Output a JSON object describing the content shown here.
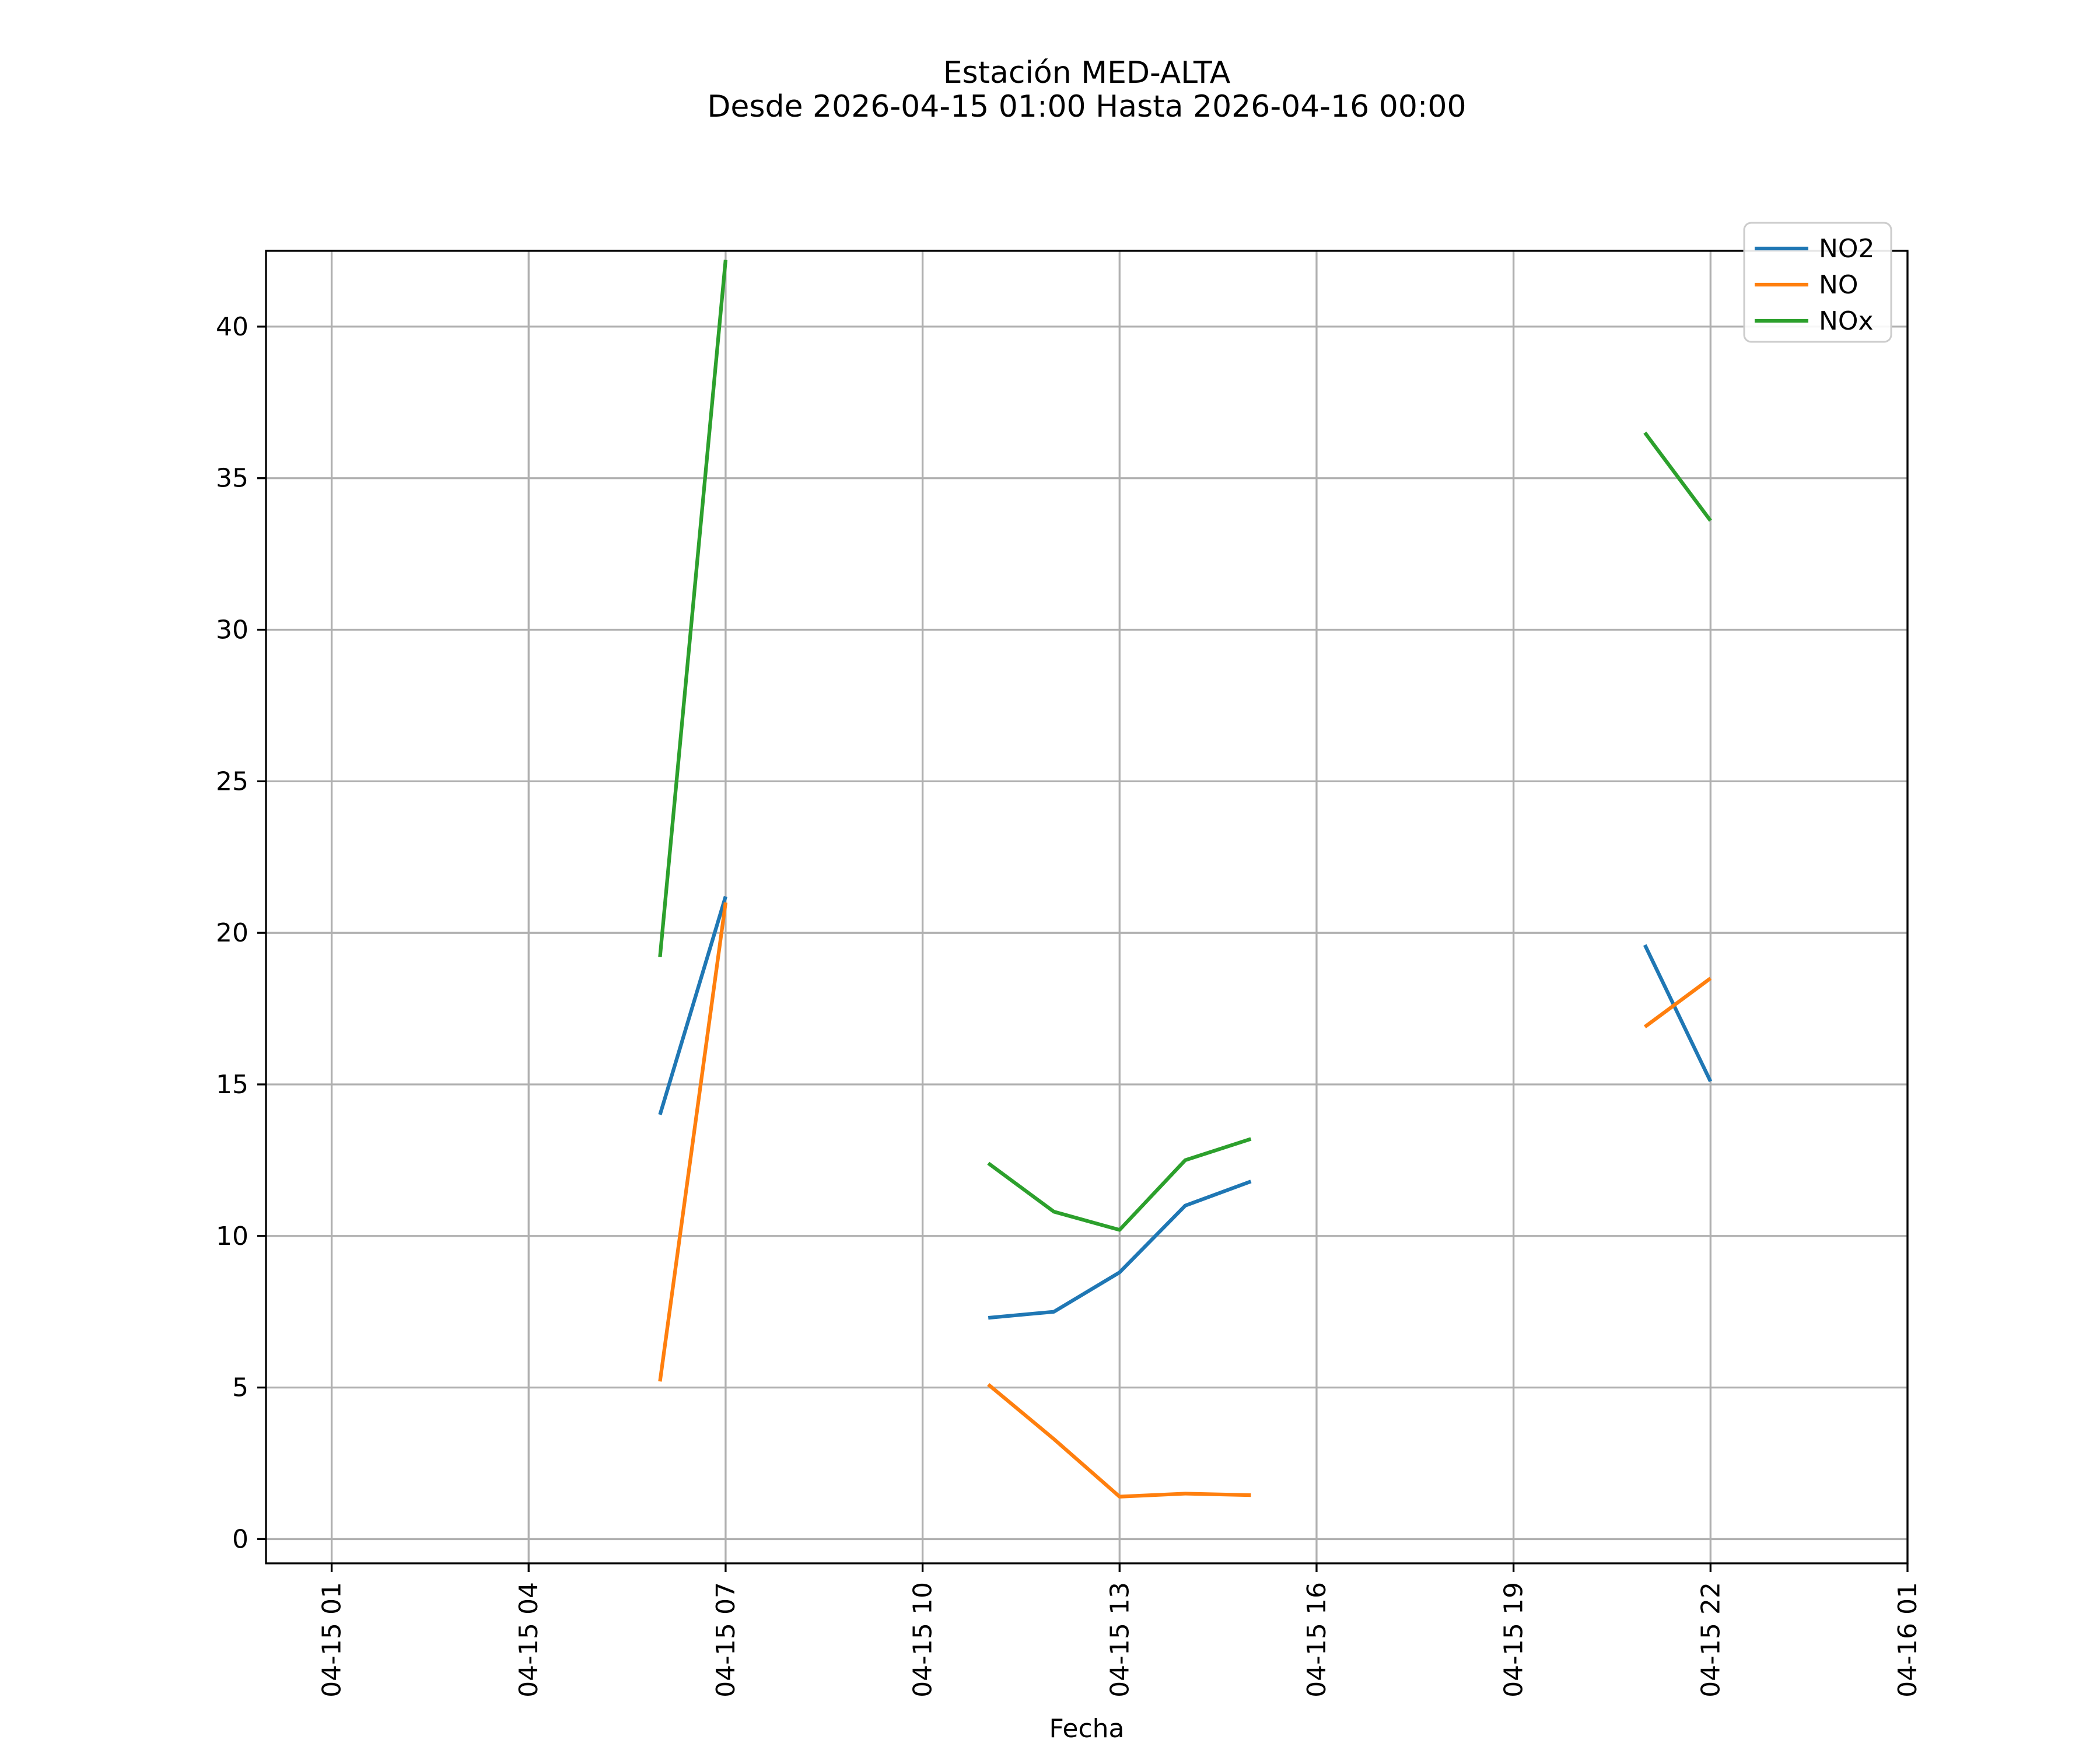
{
  "chart_data": {
    "type": "line",
    "title": "Estación MED-ALTA",
    "subtitle": "Desde 2026-04-15 01:00 Hasta 2026-04-16 00:00",
    "xlabel": "Fecha",
    "ylabel": "",
    "x_axis_note": "hours since 2026-04-15 00:00, ticks labeled as MM-DD HH",
    "xlim": [
      0,
      25
    ],
    "ylim": [
      -0.8,
      42.5
    ],
    "grid": true,
    "background": "#ffffff",
    "grid_color": "#b0b0b0",
    "spine_color": "#000000",
    "legend_position": "upper right",
    "x_ticks": {
      "values": [
        1,
        4,
        7,
        10,
        13,
        16,
        19,
        22,
        25
      ],
      "labels": [
        "04-15 01",
        "04-15 04",
        "04-15 07",
        "04-15 10",
        "04-15 13",
        "04-15 16",
        "04-15 19",
        "04-15 22",
        "04-16 01"
      ]
    },
    "y_ticks": [
      0,
      5,
      10,
      15,
      20,
      25,
      30,
      35,
      40
    ],
    "series": [
      {
        "name": "NO2",
        "color": "#1f77b4",
        "segments": [
          [
            [
              6,
              14.0
            ],
            [
              7,
              21.2
            ]
          ],
          [
            [
              11,
              7.3
            ],
            [
              12,
              7.5
            ],
            [
              13,
              8.8
            ],
            [
              14,
              11.0
            ],
            [
              15,
              11.8
            ]
          ],
          [
            [
              21,
              19.6
            ],
            [
              22,
              15.1
            ]
          ]
        ]
      },
      {
        "name": "NO",
        "color": "#ff7f0e",
        "segments": [
          [
            [
              6,
              5.2
            ],
            [
              7,
              21.0
            ]
          ],
          [
            [
              11,
              5.1
            ],
            [
              12,
              3.3
            ],
            [
              13,
              1.4
            ],
            [
              14,
              1.5
            ],
            [
              15,
              1.45
            ]
          ],
          [
            [
              21,
              16.9
            ],
            [
              22,
              18.5
            ]
          ]
        ]
      },
      {
        "name": "NOx",
        "color": "#2ca02c",
        "segments": [
          [
            [
              6,
              19.2
            ],
            [
              7,
              42.2
            ]
          ],
          [
            [
              11,
              12.4
            ],
            [
              12,
              10.8
            ],
            [
              13,
              10.2
            ],
            [
              14,
              12.5
            ],
            [
              15,
              13.2
            ]
          ],
          [
            [
              21,
              36.5
            ],
            [
              22,
              33.6
            ]
          ]
        ]
      }
    ]
  }
}
